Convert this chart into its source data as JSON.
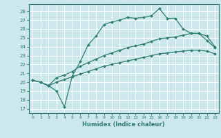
{
  "xlabel": "Humidex (Indice chaleur)",
  "bg_color": "#cce8ec",
  "grid_color": "#ffffff",
  "line_color": "#2e7d6e",
  "xlim": [
    -0.5,
    23.5
  ],
  "ylim": [
    16.5,
    28.8
  ],
  "yticks": [
    17,
    18,
    19,
    20,
    21,
    22,
    23,
    24,
    25,
    26,
    27,
    28
  ],
  "xticks": [
    0,
    1,
    2,
    3,
    4,
    5,
    6,
    7,
    8,
    9,
    10,
    11,
    12,
    13,
    14,
    15,
    16,
    17,
    18,
    19,
    20,
    21,
    22,
    23
  ],
  "line1_x": [
    0,
    1,
    2,
    3,
    4,
    5,
    6,
    7,
    8,
    9,
    10,
    11,
    12,
    13,
    14,
    15,
    16,
    17,
    18,
    19,
    20,
    21,
    22,
    23
  ],
  "line1_y": [
    20.2,
    20.0,
    19.6,
    19.0,
    17.2,
    20.7,
    22.3,
    24.2,
    25.2,
    26.5,
    26.8,
    27.0,
    27.3,
    27.2,
    27.3,
    27.5,
    28.3,
    27.2,
    27.2,
    26.0,
    25.5,
    25.5,
    24.7,
    23.9
  ],
  "line2_x": [
    0,
    1,
    2,
    3,
    4,
    5,
    6,
    7,
    8,
    9,
    10,
    11,
    12,
    13,
    14,
    15,
    16,
    17,
    18,
    19,
    20,
    21,
    22,
    23
  ],
  "line2_y": [
    20.2,
    20.0,
    19.6,
    20.5,
    20.8,
    21.2,
    21.8,
    22.2,
    22.6,
    23.0,
    23.3,
    23.6,
    23.9,
    24.1,
    24.3,
    24.6,
    24.9,
    25.0,
    25.1,
    25.3,
    25.5,
    25.5,
    25.2,
    24.0
  ],
  "line3_x": [
    0,
    1,
    2,
    3,
    4,
    5,
    6,
    7,
    8,
    9,
    10,
    11,
    12,
    13,
    14,
    15,
    16,
    17,
    18,
    19,
    20,
    21,
    22,
    23
  ],
  "line3_y": [
    20.2,
    20.0,
    19.6,
    20.0,
    20.3,
    20.6,
    20.9,
    21.2,
    21.5,
    21.8,
    22.0,
    22.2,
    22.4,
    22.6,
    22.8,
    23.0,
    23.2,
    23.3,
    23.4,
    23.5,
    23.6,
    23.6,
    23.5,
    23.2
  ]
}
